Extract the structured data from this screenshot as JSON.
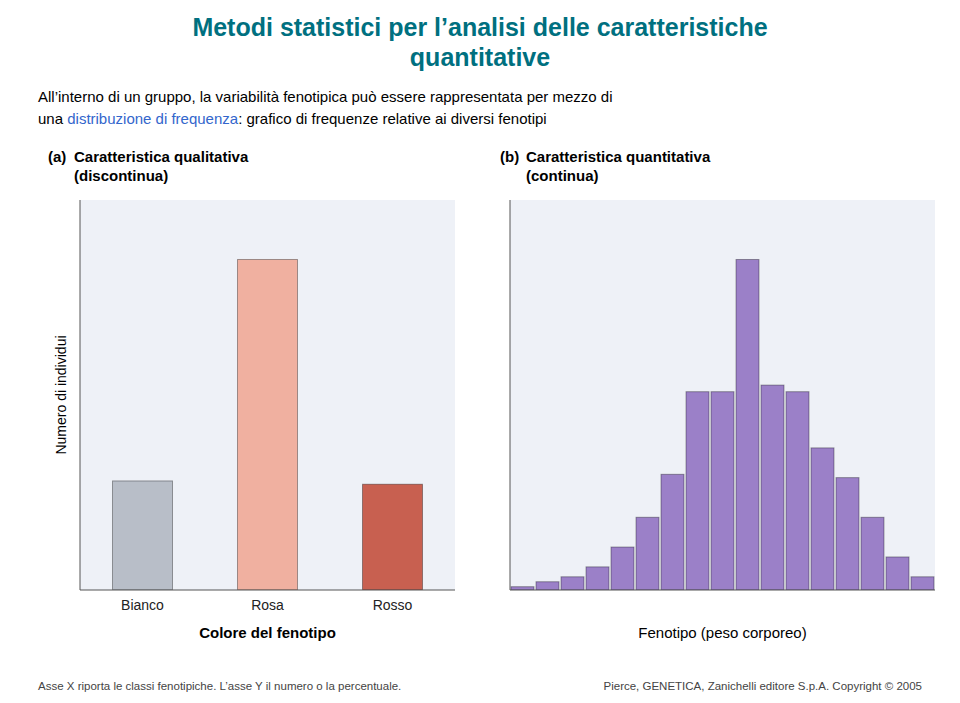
{
  "title": [
    "Metodi statistici per l’analisi delle caratteristiche",
    "quantitative"
  ],
  "body": [
    "All’interno di un gruppo, la variabilità fenotipica può essere rappresentata per mezzo di",
    "una ",
    "distribuzione di frequenza",
    ": grafico di frequenze relative ai diversi fenotipi"
  ],
  "footer": [
    "Asse X riporta le classi fenotipiche. L’asse Y il numero o la percentuale.",
    "Pierce, GENETICA,  Zanichelli editore S.p.A.  Copyright © 2005"
  ],
  "chart_data": [
    {
      "type": "bar",
      "annotations": [
        "(a)"
      ],
      "title": "Caratteristica qualitativa",
      "subtitle": "(discontinua)",
      "categories": [
        "Bianco",
        "Rosa",
        "Rosso"
      ],
      "values": [
        0.33,
        1.0,
        0.32
      ],
      "colors": [
        "#b8bec8",
        "#f0b0a0",
        "#c86050"
      ],
      "x_label": "Colore del fenotipo",
      "y_label": "Numero di individui",
      "ylim": [
        0,
        1.18
      ],
      "yticks": [],
      "tick_labels": "x"
    },
    {
      "type": "bar",
      "annotations": [
        "(b)"
      ],
      "title": "Caratteristica quantitativa",
      "subtitle": "(continua)",
      "values": [
        0.01,
        0.025,
        0.04,
        0.07,
        0.13,
        0.22,
        0.35,
        0.6,
        0.6,
        1.0,
        0.62,
        0.6,
        0.43,
        0.34,
        0.22,
        0.1,
        0.04
      ],
      "color": "#9b80c8",
      "x_label": "Fenotipo (peso corporeo)",
      "ylim": [
        0,
        1.18
      ],
      "yticks": [],
      "tick_labels": false
    }
  ]
}
